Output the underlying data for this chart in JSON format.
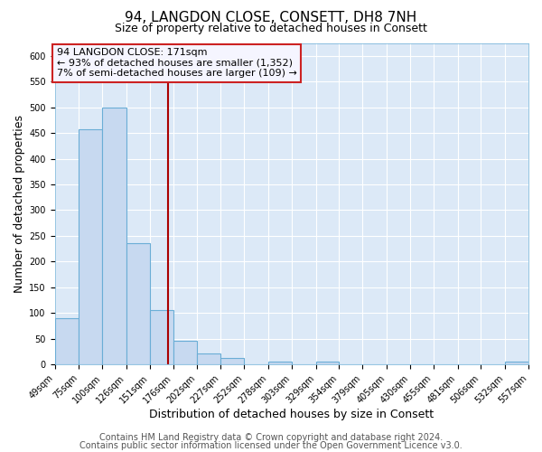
{
  "title": "94, LANGDON CLOSE, CONSETT, DH8 7NH",
  "subtitle": "Size of property relative to detached houses in Consett",
  "xlabel": "Distribution of detached houses by size in Consett",
  "ylabel": "Number of detached properties",
  "bin_edges": [
    49,
    75,
    100,
    126,
    151,
    176,
    202,
    227,
    252,
    278,
    303,
    329,
    354,
    379,
    405,
    430,
    455,
    481,
    506,
    532,
    557
  ],
  "bar_heights": [
    90,
    458,
    500,
    236,
    105,
    46,
    21,
    12,
    0,
    5,
    0,
    5,
    0,
    0,
    0,
    0,
    0,
    0,
    0,
    5
  ],
  "bar_color": "#c7d9f0",
  "bar_edge_color": "#6baed6",
  "property_value": 171,
  "vline_color": "#aa0000",
  "annotation_line1": "94 LANGDON CLOSE: 171sqm",
  "annotation_line2": "← 93% of detached houses are smaller (1,352)",
  "annotation_line3": "7% of semi-detached houses are larger (109) →",
  "annotation_box_facecolor": "#f5f5ff",
  "annotation_box_edgecolor": "#cc2222",
  "ylim": [
    0,
    625
  ],
  "yticks": [
    0,
    50,
    100,
    150,
    200,
    250,
    300,
    350,
    400,
    450,
    500,
    550,
    600
  ],
  "tick_labels": [
    "49sqm",
    "75sqm",
    "100sqm",
    "126sqm",
    "151sqm",
    "176sqm",
    "202sqm",
    "227sqm",
    "252sqm",
    "278sqm",
    "303sqm",
    "329sqm",
    "354sqm",
    "379sqm",
    "405sqm",
    "430sqm",
    "455sqm",
    "481sqm",
    "506sqm",
    "532sqm",
    "557sqm"
  ],
  "footnote1": "Contains HM Land Registry data © Crown copyright and database right 2024.",
  "footnote2": "Contains public sector information licensed under the Open Government Licence v3.0.",
  "plot_bg_color": "#dce9f7",
  "fig_bg_color": "#ffffff",
  "grid_color": "#ffffff",
  "title_fontsize": 11,
  "subtitle_fontsize": 9,
  "axis_label_fontsize": 9,
  "tick_fontsize": 7,
  "annotation_fontsize": 8,
  "footnote_fontsize": 7
}
